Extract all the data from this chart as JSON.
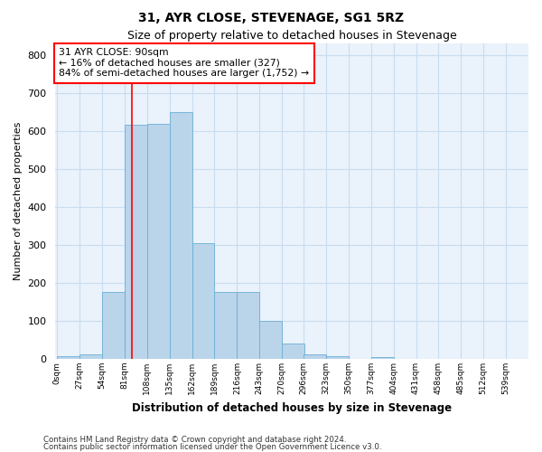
{
  "title": "31, AYR CLOSE, STEVENAGE, SG1 5RZ",
  "subtitle": "Size of property relative to detached houses in Stevenage",
  "xlabel": "Distribution of detached houses by size in Stevenage",
  "ylabel": "Number of detached properties",
  "bin_labels": [
    "0sqm",
    "27sqm",
    "54sqm",
    "81sqm",
    "108sqm",
    "135sqm",
    "162sqm",
    "189sqm",
    "216sqm",
    "243sqm",
    "270sqm",
    "296sqm",
    "323sqm",
    "350sqm",
    "377sqm",
    "404sqm",
    "431sqm",
    "458sqm",
    "485sqm",
    "512sqm",
    "539sqm"
  ],
  "bar_values": [
    7,
    12,
    175,
    615,
    618,
    650,
    305,
    175,
    175,
    100,
    40,
    13,
    8,
    0,
    5,
    0,
    0,
    0,
    0,
    0,
    0
  ],
  "bin_width": 27,
  "bin_starts": [
    0,
    27,
    54,
    81,
    108,
    135,
    162,
    189,
    216,
    243,
    270,
    296,
    323,
    350,
    377,
    404,
    431,
    458,
    485,
    512,
    539
  ],
  "property_size": 90,
  "annotation_text": "31 AYR CLOSE: 90sqm\n← 16% of detached houses are smaller (327)\n84% of semi-detached houses are larger (1,752) →",
  "bar_color": "#bad4ea",
  "bar_edge_color": "#6aafd6",
  "vline_color": "red",
  "annotation_box_color": "white",
  "annotation_box_edge": "red",
  "grid_color": "#c8ddf0",
  "bg_color": "#eaf2fb",
  "ylim": [
    0,
    830
  ],
  "yticks": [
    0,
    100,
    200,
    300,
    400,
    500,
    600,
    700,
    800
  ],
  "footer1": "Contains HM Land Registry data © Crown copyright and database right 2024.",
  "footer2": "Contains public sector information licensed under the Open Government Licence v3.0."
}
